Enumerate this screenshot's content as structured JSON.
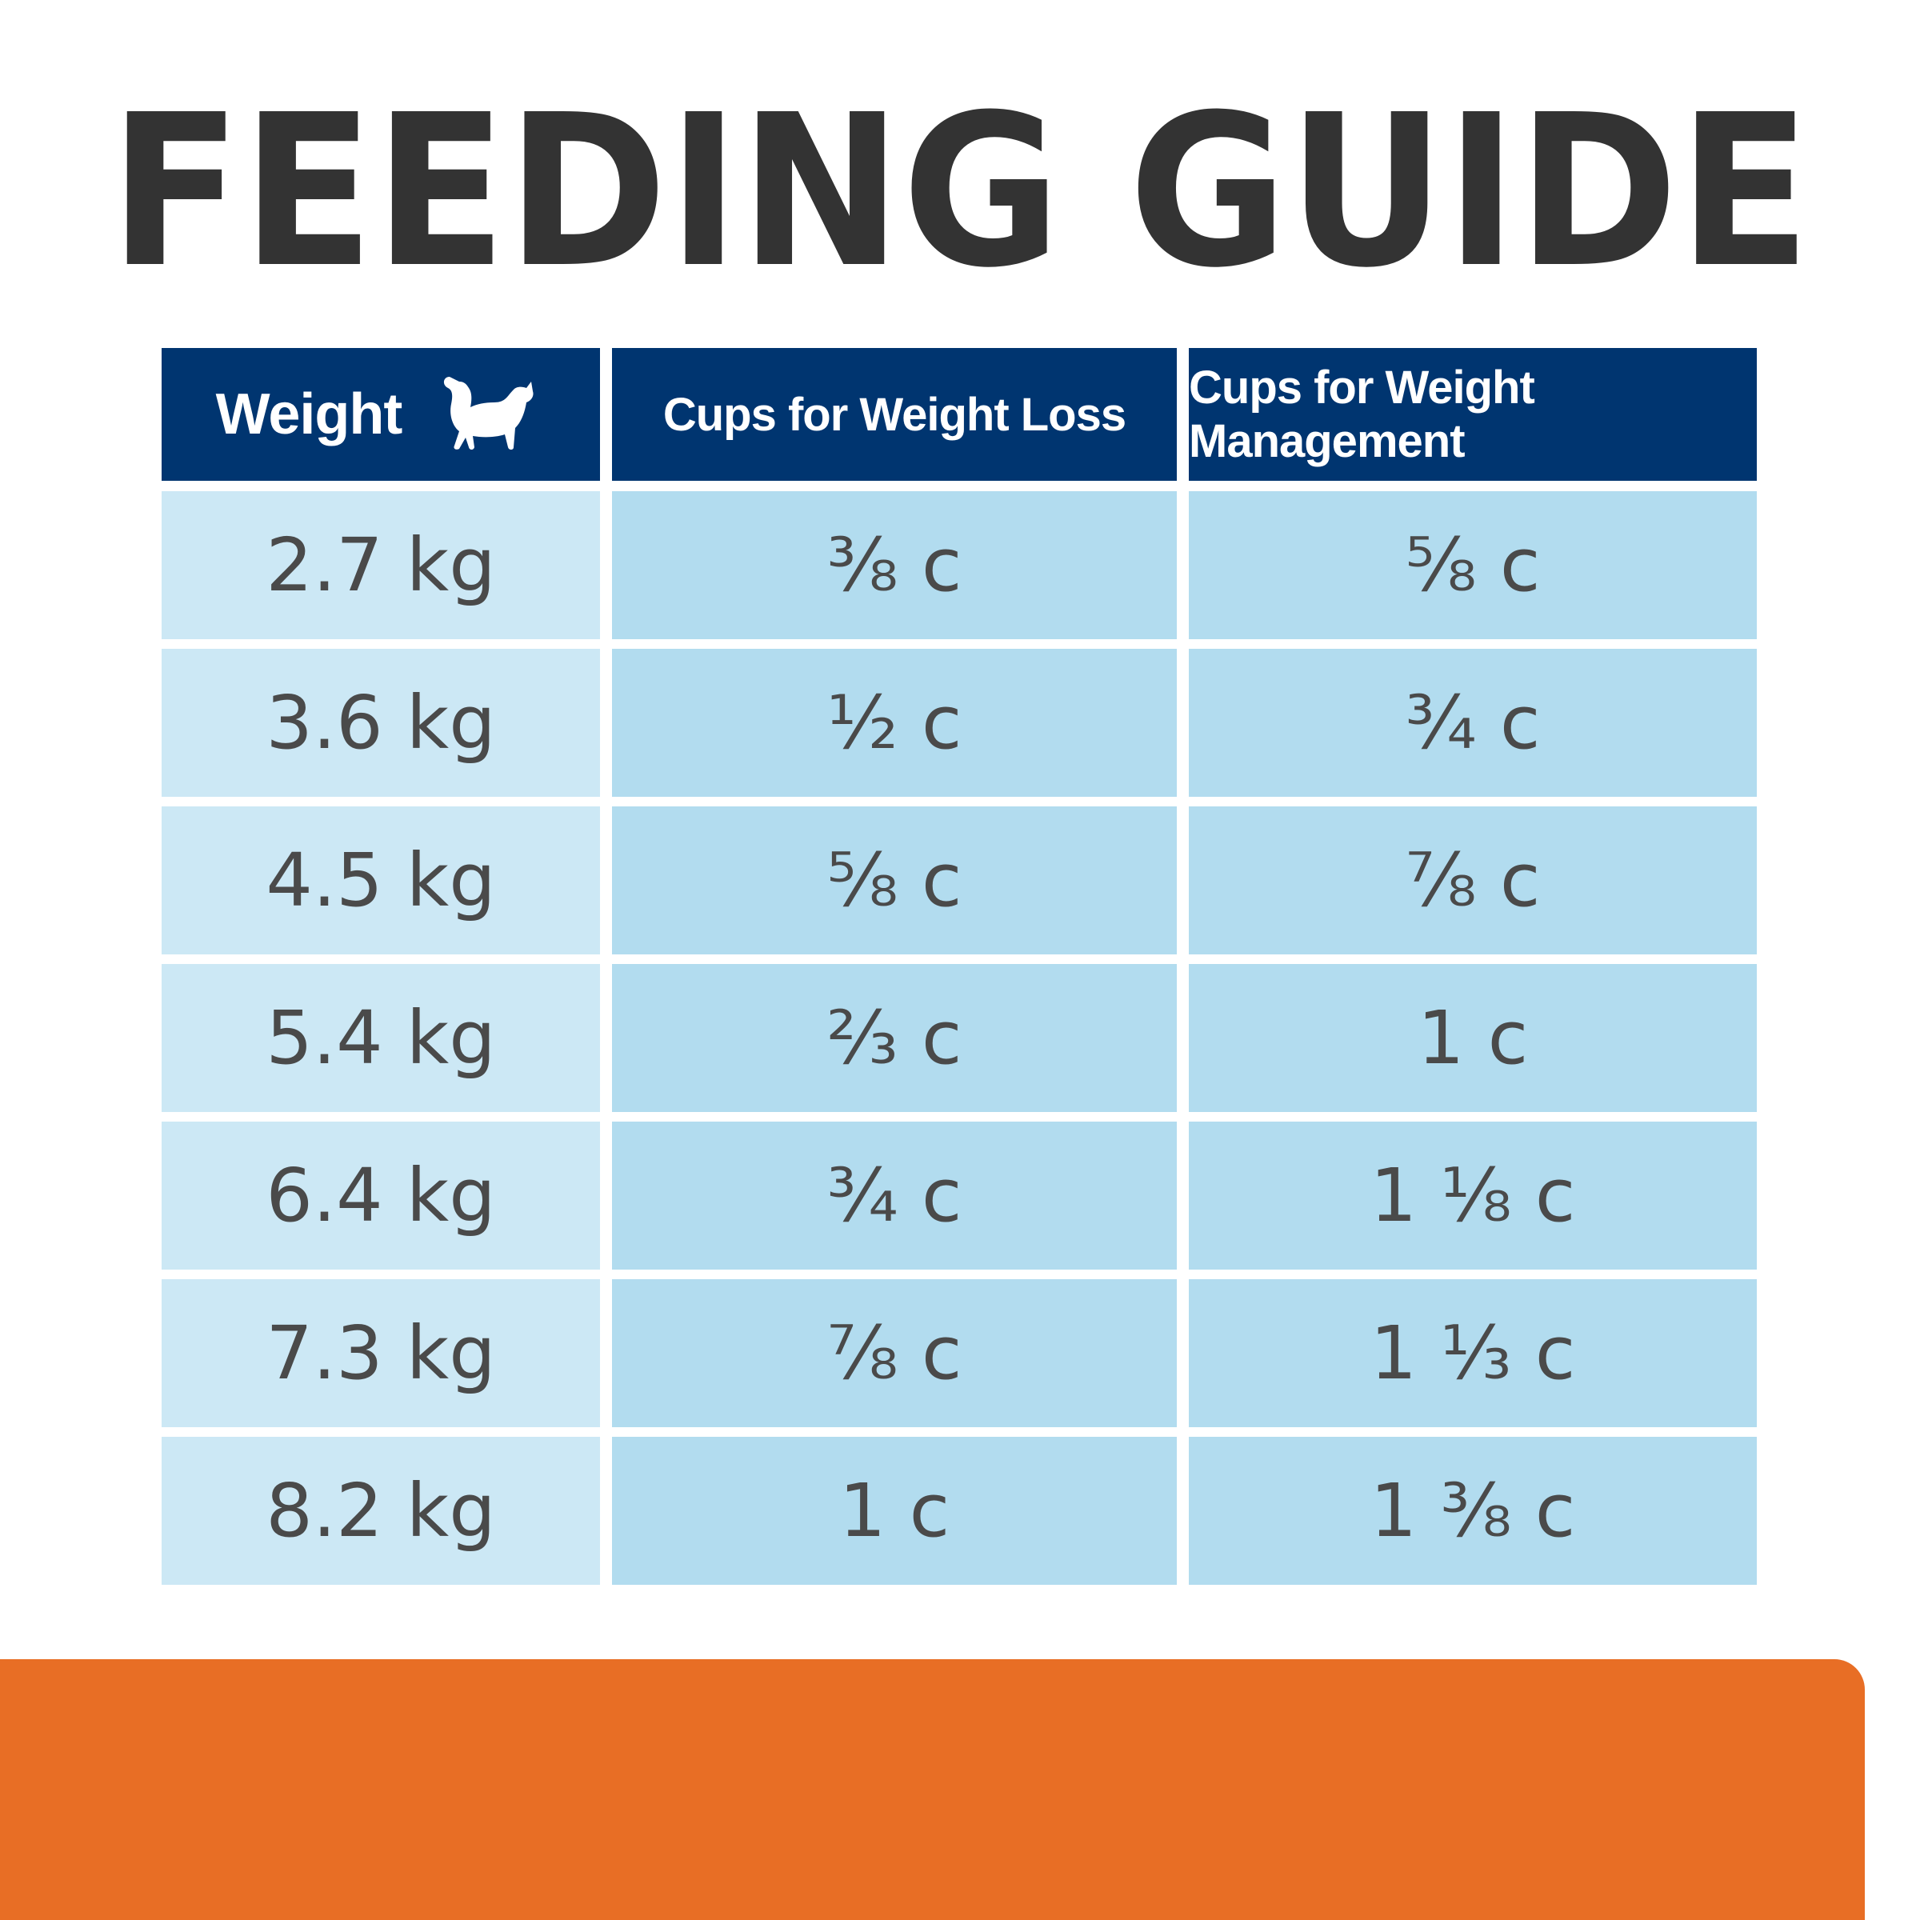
{
  "header": {
    "title": "FEEDING GUIDE"
  },
  "table": {
    "columns": [
      "Weight",
      "Cups for Weight Loss",
      "Cups for Weight Management"
    ],
    "rows": [
      [
        "2.7 kg",
        "⅜ c",
        "⅝ c"
      ],
      [
        "3.6 kg",
        "½ c",
        "¾ c"
      ],
      [
        "4.5 kg",
        "⅝ c",
        "⅞ c"
      ],
      [
        "5.4 kg",
        "⅔ c",
        "1 c"
      ],
      [
        "6.4 kg",
        "¾ c",
        "1 ⅛ c"
      ],
      [
        "7.3 kg",
        "⅞ c",
        "1 ⅓ c"
      ],
      [
        "8.2 kg",
        "1 c",
        "1 ⅜ c"
      ]
    ]
  }
}
